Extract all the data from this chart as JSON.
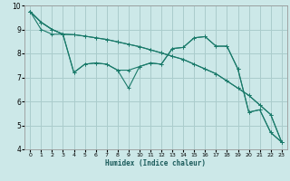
{
  "xlabel": "Humidex (Indice chaleur)",
  "bg_color": "#cce8e8",
  "grid_color": "#aacccc",
  "line_color": "#1a7a6a",
  "marker": "+",
  "xlim": [
    -0.5,
    23.5
  ],
  "ylim": [
    4,
    10
  ],
  "xticks": [
    0,
    1,
    2,
    3,
    4,
    5,
    6,
    7,
    8,
    9,
    10,
    11,
    12,
    13,
    14,
    15,
    16,
    17,
    18,
    19,
    20,
    21,
    22,
    23
  ],
  "yticks": [
    4,
    5,
    6,
    7,
    8,
    9,
    10
  ],
  "series": [
    [
      9.75,
      9.3,
      9.0,
      8.8,
      7.2,
      7.55,
      7.6,
      7.55,
      7.3,
      6.55,
      7.45,
      7.6,
      7.55,
      8.2,
      8.25,
      8.65,
      8.7,
      8.3,
      8.3,
      7.35,
      5.55,
      5.65,
      4.7,
      4.3
    ],
    [
      9.75,
      9.3,
      9.0,
      8.8,
      8.78,
      8.72,
      8.65,
      8.58,
      8.48,
      8.38,
      8.28,
      8.15,
      8.02,
      7.88,
      7.75,
      7.55,
      7.35,
      7.15,
      6.85,
      6.55,
      6.25,
      5.85,
      5.45,
      4.3
    ],
    [
      9.75,
      9.0,
      8.8,
      8.8,
      7.2,
      7.55,
      7.6,
      7.55,
      7.3,
      7.3,
      7.45,
      7.6,
      7.55,
      8.2,
      8.25,
      8.65,
      8.7,
      8.3,
      8.3,
      7.35,
      5.55,
      5.65,
      4.7,
      4.3
    ],
    [
      9.75,
      9.3,
      9.0,
      8.8,
      8.78,
      8.72,
      8.65,
      8.58,
      8.48,
      8.38,
      8.28,
      8.15,
      8.02,
      7.88,
      7.75,
      7.55,
      7.35,
      7.15,
      6.85,
      6.55,
      6.25,
      5.85,
      5.45,
      4.3
    ]
  ]
}
